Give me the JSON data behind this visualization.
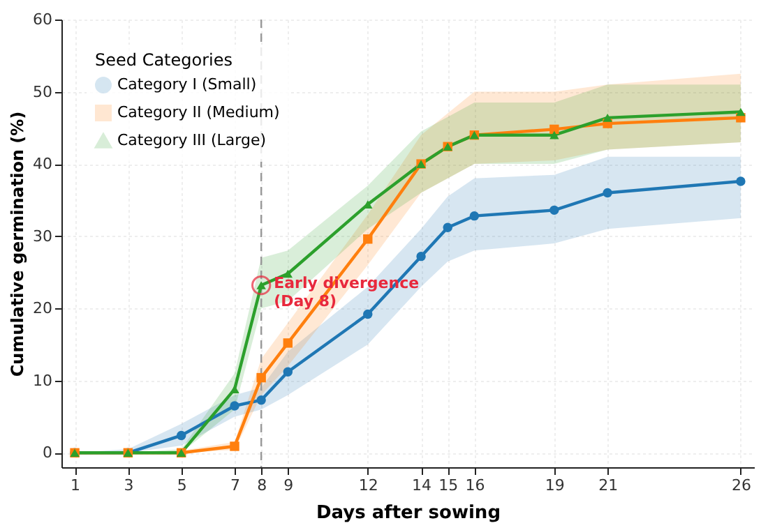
{
  "chart_data": {
    "type": "line",
    "xlabel": "Days after sowing",
    "ylabel": "Cumulative germination (%)",
    "legend_title": "Seed Categories",
    "legend": "top left",
    "grid": true,
    "line_style": "solid",
    "x": [
      1,
      3,
      5,
      7,
      8,
      9,
      12,
      14,
      15,
      16,
      19,
      21,
      26
    ],
    "xlim": [
      0.5,
      26.5
    ],
    "xticks": [
      1,
      3,
      5,
      7,
      8,
      9,
      12,
      14,
      15,
      16,
      19,
      21,
      26
    ],
    "ylim": [
      -2,
      60
    ],
    "yticks": [
      0,
      10,
      20,
      30,
      40,
      50,
      60
    ],
    "series": [
      {
        "name": "Category I (Small)",
        "color": "#1f77b4",
        "marker": "circle",
        "values": [
          0,
          0,
          2.4,
          6.5,
          7.3,
          11.2,
          19.2,
          27.2,
          31.2,
          32.8,
          33.6,
          36,
          37.6
        ],
        "lower": [
          0,
          0,
          1,
          5,
          6,
          8,
          15,
          23,
          26.5,
          28,
          29,
          31,
          32.5
        ],
        "upper": [
          0,
          0.5,
          4,
          8,
          9,
          14,
          23,
          31,
          35.5,
          38,
          38.5,
          41,
          41
        ]
      },
      {
        "name": "Category II (Medium)",
        "color": "#ff7f0e",
        "marker": "square",
        "values": [
          0,
          0,
          0,
          0.9,
          10.4,
          15.2,
          29.6,
          40,
          42.4,
          44,
          44.8,
          45.6,
          46.4
        ],
        "lower": [
          0,
          0,
          0,
          0.4,
          8,
          12,
          26,
          36,
          38,
          40,
          40.5,
          42,
          43
        ],
        "upper": [
          0,
          0,
          0.3,
          1.5,
          13,
          18,
          33,
          44,
          47,
          50,
          50,
          51,
          52.5
        ]
      },
      {
        "name": "Category III (Large)",
        "color": "#2ca02c",
        "marker": "triangle",
        "values": [
          0,
          0,
          0,
          8.8,
          23.2,
          24.8,
          34.4,
          40,
          42.4,
          44,
          44,
          46.4,
          47.2
        ],
        "lower": [
          0,
          0,
          0,
          6,
          20,
          21,
          31,
          36,
          38,
          40,
          40,
          42,
          43
        ],
        "upper": [
          0,
          0,
          0.5,
          11,
          27,
          28,
          37,
          44.5,
          46.5,
          48.5,
          48.5,
          51,
          51
        ]
      }
    ],
    "ref_lines": [
      {
        "axis": "x",
        "value": 8,
        "color": "#999999",
        "line_style": "dashed"
      }
    ],
    "annotations": [
      {
        "text": "Early divergence\n(Day 8)",
        "x": 8,
        "y": 23.2
      }
    ]
  }
}
